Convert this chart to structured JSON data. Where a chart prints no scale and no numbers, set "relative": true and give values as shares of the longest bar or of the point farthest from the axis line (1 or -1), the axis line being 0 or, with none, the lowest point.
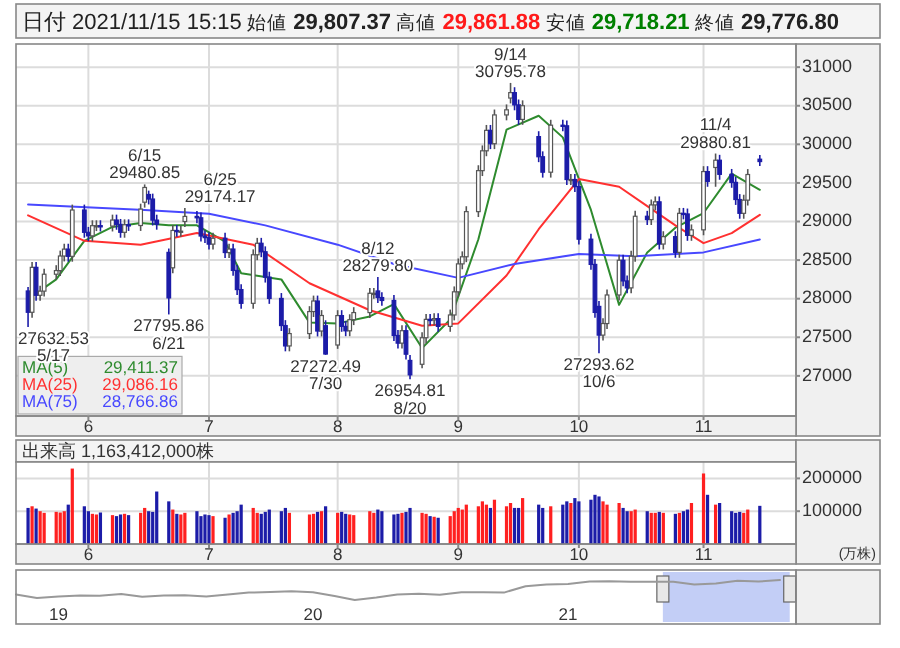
{
  "chart_data": [
    {
      "type": "candlestick",
      "title": "日付 2021/11/15 15:15 始値 29,807.37 高値 29,861.88 安値 29,718.21 終値 29,776.80",
      "x": [
        "2021-05-17",
        "2021-05-18",
        "2021-05-19",
        "2021-05-20",
        "2021-05-21",
        "2021-05-24",
        "2021-05-25",
        "2021-05-26",
        "2021-05-27",
        "2021-05-28",
        "2021-05-31",
        "2021-06-01",
        "2021-06-02",
        "2021-06-03",
        "2021-06-04",
        "2021-06-07",
        "2021-06-08",
        "2021-06-09",
        "2021-06-10",
        "2021-06-11",
        "2021-06-14",
        "2021-06-15",
        "2021-06-16",
        "2021-06-17",
        "2021-06-18",
        "2021-06-21",
        "2021-06-22",
        "2021-06-23",
        "2021-06-24",
        "2021-06-25",
        "2021-06-28",
        "2021-06-29",
        "2021-06-30",
        "2021-07-01",
        "2021-07-02",
        "2021-07-05",
        "2021-07-06",
        "2021-07-07",
        "2021-07-08",
        "2021-07-09",
        "2021-07-12",
        "2021-07-13",
        "2021-07-14",
        "2021-07-15",
        "2021-07-16",
        "2021-07-19",
        "2021-07-20",
        "2021-07-21",
        "2021-07-26",
        "2021-07-27",
        "2021-07-28",
        "2021-07-29",
        "2021-07-30",
        "2021-08-02",
        "2021-08-03",
        "2021-08-04",
        "2021-08-05",
        "2021-08-06",
        "2021-08-10",
        "2021-08-11",
        "2021-08-12",
        "2021-08-13",
        "2021-08-16",
        "2021-08-17",
        "2021-08-18",
        "2021-08-19",
        "2021-08-20",
        "2021-08-23",
        "2021-08-24",
        "2021-08-25",
        "2021-08-26",
        "2021-08-27",
        "2021-08-30",
        "2021-08-31",
        "2021-09-01",
        "2021-09-02",
        "2021-09-03",
        "2021-09-06",
        "2021-09-07",
        "2021-09-08",
        "2021-09-09",
        "2021-09-10",
        "2021-09-13",
        "2021-09-14",
        "2021-09-15",
        "2021-09-16",
        "2021-09-17",
        "2021-09-21",
        "2021-09-22",
        "2021-09-24",
        "2021-09-27",
        "2021-09-28",
        "2021-09-29",
        "2021-09-30",
        "2021-10-01",
        "2021-10-04",
        "2021-10-05",
        "2021-10-06",
        "2021-10-07",
        "2021-10-08",
        "2021-10-11",
        "2021-10-12",
        "2021-10-13",
        "2021-10-14",
        "2021-10-15",
        "2021-10-18",
        "2021-10-19",
        "2021-10-20",
        "2021-10-21",
        "2021-10-22",
        "2021-10-25",
        "2021-10-26",
        "2021-10-27",
        "2021-10-28",
        "2021-10-29",
        "2021-11-01",
        "2021-11-02",
        "2021-11-04",
        "2021-11-05",
        "2021-11-08",
        "2021-11-09",
        "2021-11-10",
        "2021-11-11",
        "2021-11-12",
        "2021-11-15"
      ],
      "ohlc": [
        [
          28100,
          28150,
          27632.53,
          27824
        ],
        [
          27824,
          28476,
          27754,
          28406
        ],
        [
          28406,
          28476,
          27974,
          28044
        ],
        [
          28044,
          28168,
          27974,
          28098
        ],
        [
          28098,
          28387,
          28028,
          28317
        ],
        [
          28317,
          28434,
          28247,
          28364
        ],
        [
          28364,
          28623,
          28294,
          28553
        ],
        [
          28553,
          28712,
          28483,
          28642
        ],
        [
          28642,
          28712,
          28479,
          28549
        ],
        [
          28549,
          29219,
          28479,
          29149
        ],
        [
          29149,
          29219,
          28790,
          28860
        ],
        [
          28860,
          28930,
          28744,
          28814
        ],
        [
          28814,
          29016,
          28744,
          28946
        ],
        [
          28946,
          29016,
          28876,
          28946
        ],
        [
          28946,
          29016,
          28871,
          28941
        ],
        [
          28941,
          29089,
          28871,
          29019
        ],
        [
          29019,
          29089,
          28893,
          28963
        ],
        [
          28963,
          29033,
          28790,
          28860
        ],
        [
          28860,
          29028,
          28790,
          28958
        ],
        [
          28958,
          29028,
          28878,
          28948
        ],
        [
          28948,
          29231,
          28878,
          29161
        ],
        [
          29250,
          29480.85,
          29180,
          29441
        ],
        [
          29350,
          29400,
          29221,
          29291
        ],
        [
          29291,
          29361,
          28948,
          29018
        ],
        [
          29018,
          29088,
          28894,
          28964
        ],
        [
          28600,
          28650,
          27795.86,
          28010
        ],
        [
          28400,
          28954,
          28330,
          28884
        ],
        [
          28884,
          28954,
          28804,
          28874
        ],
        [
          28874,
          28945,
          28804,
          28875
        ],
        [
          29000,
          29174.17,
          28930,
          29066
        ],
        [
          29066,
          29136,
          28978,
          29048
        ],
        [
          29048,
          29118,
          28742,
          28812
        ],
        [
          28812,
          28882,
          28721,
          28791
        ],
        [
          28791,
          28861,
          28637,
          28707
        ],
        [
          28707,
          28853,
          28637,
          28783
        ],
        [
          28783,
          28853,
          28528,
          28598
        ],
        [
          28598,
          28713,
          28528,
          28643
        ],
        [
          28643,
          28713,
          28296,
          28366
        ],
        [
          28366,
          28436,
          28048,
          28118
        ],
        [
          28118,
          28188,
          27870,
          27940
        ],
        [
          27940,
          28639,
          27870,
          28569
        ],
        [
          28569,
          28788,
          28499,
          28718
        ],
        [
          28718,
          28788,
          28538,
          28608
        ],
        [
          28608,
          28678,
          28209,
          28279
        ],
        [
          28279,
          28349,
          27933,
          28003
        ],
        [
          28003,
          28073,
          27582,
          27652
        ],
        [
          27652,
          27722,
          27318,
          27388
        ],
        [
          27388,
          27618,
          27318,
          27548
        ],
        [
          27548,
          27903,
          27478,
          27833
        ],
        [
          27833,
          28040,
          27763,
          27970
        ],
        [
          27970,
          28040,
          27511,
          27581
        ],
        [
          27581,
          27852,
          27511,
          27782
        ],
        [
          27650,
          27720,
          27272.49,
          27283
        ],
        [
          27400,
          27851,
          27350,
          27781
        ],
        [
          27781,
          27851,
          27571,
          27641
        ],
        [
          27641,
          27711,
          27514,
          27584
        ],
        [
          27584,
          27798,
          27514,
          27728
        ],
        [
          27728,
          27890,
          27658,
          27820
        ],
        [
          27820,
          28140,
          27750,
          28070
        ],
        [
          28070,
          28140,
          28000,
          28070
        ],
        [
          28100,
          28279.8,
          27945,
          28015
        ],
        [
          28015,
          28085,
          27907,
          27977
        ],
        [
          27977,
          28047,
          27453,
          27523
        ],
        [
          27523,
          27593,
          27354,
          27424
        ],
        [
          27424,
          27655,
          27354,
          27585
        ],
        [
          27585,
          27655,
          27211,
          27281
        ],
        [
          27200,
          27270,
          26954.81,
          27013
        ],
        [
          27150,
          27564,
          27100,
          27494
        ],
        [
          27494,
          27802,
          27424,
          27732
        ],
        [
          27732,
          27802,
          27654,
          27724
        ],
        [
          27724,
          27812,
          27654,
          27742
        ],
        [
          27742,
          27812,
          27571,
          27641
        ],
        [
          27641,
          27859,
          27571,
          27789
        ],
        [
          27789,
          28159,
          27719,
          28089
        ],
        [
          28089,
          28521,
          28019,
          28451
        ],
        [
          28451,
          28613,
          28381,
          28543
        ],
        [
          28543,
          29198,
          28473,
          29128
        ],
        [
          29128,
          29729,
          29058,
          29659
        ],
        [
          29659,
          29986,
          29589,
          29916
        ],
        [
          29916,
          30251,
          29846,
          30181
        ],
        [
          30181,
          30251,
          29938,
          30008
        ],
        [
          30008,
          30451,
          29938,
          30381
        ],
        [
          30381,
          30517,
          30311,
          30447
        ],
        [
          30600,
          30795.78,
          30530,
          30670
        ],
        [
          30670,
          30740,
          30441,
          30511
        ],
        [
          30511,
          30581,
          30253,
          30323
        ],
        [
          30323,
          30570,
          30253,
          30500
        ],
        [
          30100,
          30170,
          29769,
          29839
        ],
        [
          29839,
          29909,
          29569,
          29639
        ],
        [
          29639,
          30318,
          29569,
          30248
        ],
        [
          30248,
          30318,
          30170,
          30240
        ],
        [
          30240,
          30310,
          29474,
          29544
        ],
        [
          29544,
          29614,
          29474,
          29544
        ],
        [
          29544,
          29614,
          29382,
          29452
        ],
        [
          29452,
          29522,
          28701,
          28771
        ],
        [
          28771,
          28841,
          28374,
          28444
        ],
        [
          28444,
          28514,
          27752,
          27822
        ],
        [
          27900,
          27970,
          27293.62,
          27528
        ],
        [
          27528,
          27748,
          27458,
          27678
        ],
        [
          27678,
          28118,
          27608,
          28048
        ],
        [
          28048,
          28568,
          27978,
          28498
        ],
        [
          28498,
          28568,
          28160,
          28230
        ],
        [
          28230,
          28300,
          28070,
          28140
        ],
        [
          28140,
          28620,
          28070,
          28550
        ],
        [
          28550,
          29138,
          28480,
          29068
        ],
        [
          29068,
          29138,
          28955,
          29025
        ],
        [
          29025,
          29285,
          28955,
          29215
        ],
        [
          29215,
          29325,
          29145,
          29255
        ],
        [
          29255,
          29325,
          28638,
          28708
        ],
        [
          28708,
          28874,
          28638,
          28804
        ],
        [
          28804,
          28874,
          28530,
          28600
        ],
        [
          28600,
          29176,
          28530,
          29106
        ],
        [
          29106,
          29176,
          29028,
          29098
        ],
        [
          29098,
          29168,
          28750,
          28820
        ],
        [
          28820,
          28962,
          28750,
          28892
        ],
        [
          28892,
          29717,
          28822,
          29647
        ],
        [
          29647,
          29717,
          29450,
          29520
        ],
        [
          29700,
          29880.81,
          29450,
          29794
        ],
        [
          29794,
          29864,
          29541,
          29611
        ],
        [
          29611,
          29681,
          29437,
          29507
        ],
        [
          29507,
          29577,
          29215,
          29285
        ],
        [
          29285,
          29355,
          29036,
          29106
        ],
        [
          29106,
          29347,
          29036,
          29277
        ],
        [
          29277,
          29679,
          29207,
          29609
        ],
        [
          29807.37,
          29861.88,
          29718.21,
          29776.8
        ]
      ],
      "series": [
        {
          "type": "line",
          "name": "MA(5) 29,411.37",
          "color": "#2e8b2e",
          "x": [
            "2021-05-21",
            "2021-05-24",
            "2021-05-31",
            "2021-06-07",
            "2021-06-14",
            "2021-06-21",
            "2021-06-28",
            "2021-07-05",
            "2021-07-09",
            "2021-07-19",
            "2021-07-26",
            "2021-08-02",
            "2021-08-10",
            "2021-08-16",
            "2021-08-23",
            "2021-08-30",
            "2021-09-06",
            "2021-09-13",
            "2021-09-21",
            "2021-09-27",
            "2021-10-04",
            "2021-10-11",
            "2021-10-18",
            "2021-10-25",
            "2021-11-01",
            "2021-11-08",
            "2021-11-15"
          ],
          "values": [
            28140,
            28250,
            28750,
            28930,
            28980,
            28950,
            28950,
            28740,
            28330,
            28250,
            27690,
            27680,
            27770,
            27930,
            27360,
            27730,
            28770,
            30190,
            30370,
            30090,
            29150,
            27920,
            28600,
            28920,
            29110,
            29620,
            29411.37
          ]
        },
        {
          "type": "line",
          "name": "MA(25) 29,086.16",
          "color": "#ff3030",
          "x": [
            "2021-05-17",
            "2021-05-31",
            "2021-06-14",
            "2021-06-28",
            "2021-07-12",
            "2021-07-26",
            "2021-08-10",
            "2021-08-23",
            "2021-09-01",
            "2021-09-13",
            "2021-09-21",
            "2021-10-01",
            "2021-10-11",
            "2021-10-18",
            "2021-10-25",
            "2021-11-01",
            "2021-11-08",
            "2021-11-15"
          ],
          "values": [
            29080,
            28750,
            28700,
            28850,
            28700,
            28200,
            27850,
            27650,
            27680,
            28300,
            28900,
            29550,
            29450,
            29200,
            28950,
            28720,
            28850,
            29086.16
          ]
        },
        {
          "type": "line",
          "name": "MA(75) 28,766.86",
          "color": "#4848ff",
          "x": [
            "2021-05-17",
            "2021-06-15",
            "2021-07-01",
            "2021-07-15",
            "2021-08-02",
            "2021-08-16",
            "2021-09-01",
            "2021-09-15",
            "2021-10-01",
            "2021-10-15",
            "2021-11-01",
            "2021-11-15"
          ],
          "values": [
            29220,
            29150,
            29100,
            28950,
            28700,
            28450,
            28270,
            28450,
            28580,
            28550,
            28600,
            28766.86
          ]
        }
      ],
      "xlim": [
        "2021-05-14",
        "2021-11-24"
      ],
      "xticks": [
        {
          "value": "2021-06-01",
          "label": "6"
        },
        {
          "value": "2021-07-01",
          "label": "7"
        },
        {
          "value": "2021-08-02",
          "label": "8"
        },
        {
          "value": "2021-09-01",
          "label": "9"
        },
        {
          "value": "2021-10-01",
          "label": "10"
        },
        {
          "value": "2021-11-01",
          "label": "11"
        }
      ],
      "ylim": [
        26480,
        31300
      ],
      "yticks": [
        27000,
        27500,
        28000,
        28500,
        29000,
        29500,
        30000,
        30500,
        31000
      ],
      "grid": true,
      "annotations": [
        {
          "text": "27632.53\n5/17",
          "x": "2021-05-17",
          "y": 27632.53
        },
        {
          "text": "6/15\n29480.85",
          "x": "2021-06-15",
          "y": 29480.85
        },
        {
          "text": "6/25\n29174.17",
          "x": "2021-06-25",
          "y": 29174.17
        },
        {
          "text": "27795.86\n6/21",
          "x": "2021-06-21",
          "y": 27795.86
        },
        {
          "text": "27272.49\n7/30",
          "x": "2021-07-30",
          "y": 27272.49
        },
        {
          "text": "8/12\n28279.80",
          "x": "2021-08-12",
          "y": 28279.8
        },
        {
          "text": "26954.81\n8/20",
          "x": "2021-08-20",
          "y": 26954.81
        },
        {
          "text": "9/14\n30795.78",
          "x": "2021-09-14",
          "y": 30795.78
        },
        {
          "text": "27293.62\n10/6",
          "x": "2021-10-06",
          "y": 27293.62
        },
        {
          "text": "11/4\n29880.81",
          "x": "2021-11-04",
          "y": 29880.81
        }
      ]
    },
    {
      "type": "bar",
      "title": "出来高 1,163,412,000株",
      "ylabel": "(万株)",
      "x": [
        "2021-05-17",
        "2021-05-18",
        "2021-05-19",
        "2021-05-20",
        "2021-05-21",
        "2021-05-24",
        "2021-05-25",
        "2021-05-26",
        "2021-05-27",
        "2021-05-28",
        "2021-05-31",
        "2021-06-01",
        "2021-06-02",
        "2021-06-03",
        "2021-06-04",
        "2021-06-07",
        "2021-06-08",
        "2021-06-09",
        "2021-06-10",
        "2021-06-11",
        "2021-06-14",
        "2021-06-15",
        "2021-06-16",
        "2021-06-17",
        "2021-06-18",
        "2021-06-21",
        "2021-06-22",
        "2021-06-23",
        "2021-06-24",
        "2021-06-25",
        "2021-06-28",
        "2021-06-29",
        "2021-06-30",
        "2021-07-01",
        "2021-07-02",
        "2021-07-05",
        "2021-07-06",
        "2021-07-07",
        "2021-07-08",
        "2021-07-09",
        "2021-07-12",
        "2021-07-13",
        "2021-07-14",
        "2021-07-15",
        "2021-07-16",
        "2021-07-19",
        "2021-07-20",
        "2021-07-21",
        "2021-07-26",
        "2021-07-27",
        "2021-07-28",
        "2021-07-29",
        "2021-07-30",
        "2021-08-02",
        "2021-08-03",
        "2021-08-04",
        "2021-08-05",
        "2021-08-06",
        "2021-08-10",
        "2021-08-11",
        "2021-08-12",
        "2021-08-13",
        "2021-08-16",
        "2021-08-17",
        "2021-08-18",
        "2021-08-19",
        "2021-08-20",
        "2021-08-23",
        "2021-08-24",
        "2021-08-25",
        "2021-08-26",
        "2021-08-27",
        "2021-08-30",
        "2021-08-31",
        "2021-09-01",
        "2021-09-02",
        "2021-09-03",
        "2021-09-06",
        "2021-09-07",
        "2021-09-08",
        "2021-09-09",
        "2021-09-10",
        "2021-09-13",
        "2021-09-14",
        "2021-09-15",
        "2021-09-16",
        "2021-09-17",
        "2021-09-21",
        "2021-09-22",
        "2021-09-24",
        "2021-09-27",
        "2021-09-28",
        "2021-09-29",
        "2021-09-30",
        "2021-10-01",
        "2021-10-04",
        "2021-10-05",
        "2021-10-06",
        "2021-10-07",
        "2021-10-08",
        "2021-10-11",
        "2021-10-12",
        "2021-10-13",
        "2021-10-14",
        "2021-10-15",
        "2021-10-18",
        "2021-10-19",
        "2021-10-20",
        "2021-10-21",
        "2021-10-22",
        "2021-10-25",
        "2021-10-26",
        "2021-10-27",
        "2021-10-28",
        "2021-10-29",
        "2021-11-01",
        "2021-11-02",
        "2021-11-04",
        "2021-11-05",
        "2021-11-08",
        "2021-11-09",
        "2021-11-10",
        "2021-11-11",
        "2021-11-12",
        "2021-11-15"
      ],
      "values": [
        110000,
        115000,
        108000,
        100000,
        95000,
        98000,
        96000,
        100000,
        120000,
        230000,
        115000,
        100000,
        92000,
        90000,
        96000,
        88000,
        85000,
        90000,
        92000,
        88000,
        95000,
        110000,
        100000,
        98000,
        160000,
        130000,
        105000,
        92000,
        90000,
        95000,
        100000,
        85000,
        90000,
        88000,
        85000,
        80000,
        90000,
        95000,
        100000,
        120000,
        110000,
        95000,
        92000,
        98000,
        105000,
        100000,
        110000,
        95000,
        90000,
        92000,
        98000,
        100000,
        115000,
        95000,
        98000,
        92000,
        90000,
        88000,
        100000,
        95000,
        105000,
        100000,
        90000,
        92000,
        95000,
        98000,
        110000,
        95000,
        92000,
        85000,
        83000,
        80000,
        85000,
        100000,
        110000,
        105000,
        120000,
        115000,
        130000,
        120000,
        110000,
        135000,
        115000,
        125000,
        110000,
        110000,
        140000,
        120000,
        110000,
        115000,
        120000,
        130000,
        125000,
        140000,
        130000,
        135000,
        150000,
        145000,
        130000,
        120000,
        125000,
        110000,
        100000,
        100000,
        105000,
        100000,
        95000,
        95000,
        98000,
        95000,
        92000,
        95000,
        100000,
        105000,
        125000,
        215000,
        150000,
        120000,
        125000,
        100000,
        95000,
        98000,
        95000,
        105000,
        116340
      ],
      "colors": [
        "#1c1ca8",
        "#ff2020",
        "#1c1ca8",
        "#ff2020",
        "#ff2020",
        "#ff2020",
        "#ff2020",
        "#ff2020",
        "#1c1ca8",
        "#ff2020",
        "#1c1ca8",
        "#1c1ca8",
        "#ff2020",
        "#ff2020",
        "#1c1ca8",
        "#ff2020",
        "#1c1ca8",
        "#1c1ca8",
        "#ff2020",
        "#1c1ca8",
        "#ff2020",
        "#ff2020",
        "#1c1ca8",
        "#1c1ca8",
        "#1c1ca8",
        "#1c1ca8",
        "#ff2020",
        "#1c1ca8",
        "#ff2020",
        "#ff2020",
        "#1c1ca8",
        "#1c1ca8",
        "#1c1ca8",
        "#1c1ca8",
        "#ff2020",
        "#1c1ca8",
        "#ff2020",
        "#1c1ca8",
        "#1c1ca8",
        "#1c1ca8",
        "#ff2020",
        "#ff2020",
        "#1c1ca8",
        "#1c1ca8",
        "#1c1ca8",
        "#1c1ca8",
        "#1c1ca8",
        "#ff2020",
        "#ff2020",
        "#ff2020",
        "#1c1ca8",
        "#ff2020",
        "#1c1ca8",
        "#ff2020",
        "#1c1ca8",
        "#1c1ca8",
        "#ff2020",
        "#ff2020",
        "#ff2020",
        "#ff2020",
        "#1c1ca8",
        "#1c1ca8",
        "#1c1ca8",
        "#1c1ca8",
        "#ff2020",
        "#1c1ca8",
        "#1c1ca8",
        "#ff2020",
        "#ff2020",
        "#1c1ca8",
        "#ff2020",
        "#1c1ca8",
        "#ff2020",
        "#ff2020",
        "#ff2020",
        "#ff2020",
        "#ff2020",
        "#ff2020",
        "#ff2020",
        "#ff2020",
        "#1c1ca8",
        "#ff2020",
        "#ff2020",
        "#ff2020",
        "#1c1ca8",
        "#1c1ca8",
        "#ff2020",
        "#1c1ca8",
        "#1c1ca8",
        "#ff2020",
        "#1c1ca8",
        "#1c1ca8",
        "#ff2020",
        "#1c1ca8",
        "#1c1ca8",
        "#1c1ca8",
        "#1c1ca8",
        "#1c1ca8",
        "#ff2020",
        "#ff2020",
        "#ff2020",
        "#1c1ca8",
        "#1c1ca8",
        "#ff2020",
        "#ff2020",
        "#1c1ca8",
        "#ff2020",
        "#ff2020",
        "#1c1ca8",
        "#ff2020",
        "#1c1ca8",
        "#ff2020",
        "#1c1ca8",
        "#1c1ca8",
        "#ff2020",
        "#ff2020",
        "#1c1ca8",
        "#ff2020",
        "#1c1ca8",
        "#1c1ca8",
        "#1c1ca8",
        "#1c1ca8",
        "#ff2020",
        "#ff2020",
        "#1c1ca8"
      ],
      "xlim": [
        "2021-05-14",
        "2021-11-24"
      ],
      "xticks": [
        {
          "value": "2021-06-01",
          "label": "6"
        },
        {
          "value": "2021-07-01",
          "label": "7"
        },
        {
          "value": "2021-08-02",
          "label": "8"
        },
        {
          "value": "2021-09-01",
          "label": "9"
        },
        {
          "value": "2021-10-01",
          "label": "10"
        },
        {
          "value": "2021-11-01",
          "label": "11"
        }
      ],
      "ylim": [
        0,
        250000
      ],
      "yticks": [
        100000,
        200000
      ],
      "grid": true
    },
    {
      "type": "line",
      "relative": true,
      "tick_labels": "x",
      "color": "#999999",
      "x": [
        "2018-11",
        "2018-12",
        "2019-01",
        "2019-02",
        "2019-03",
        "2019-04",
        "2019-05",
        "2019-06",
        "2019-07",
        "2019-08",
        "2019-09",
        "2019-10",
        "2019-11",
        "2019-12",
        "2020-01",
        "2020-02",
        "2020-03",
        "2020-04",
        "2020-05",
        "2020-06",
        "2020-07",
        "2020-08",
        "2020-09",
        "2020-10",
        "2020-11",
        "2020-12",
        "2021-01",
        "2021-02",
        "2021-03",
        "2021-04",
        "2021-05",
        "2021-06",
        "2021-07",
        "2021-08",
        "2021-09",
        "2021-10",
        "2021-11"
      ],
      "values": [
        0.28,
        0.1,
        0.17,
        0.23,
        0.21,
        0.3,
        0.16,
        0.22,
        0.24,
        0.17,
        0.27,
        0.37,
        0.4,
        0.44,
        0.39,
        0.2,
        0,
        0.12,
        0.28,
        0.31,
        0.26,
        0.39,
        0.39,
        0.37,
        0.69,
        0.78,
        0.8,
        0.92,
        0.94,
        0.91,
        0.91,
        0.91,
        0.77,
        0.83,
        0.96,
        0.92,
        1
      ],
      "xlim": [
        "2018-11-01",
        "2021-11-24"
      ],
      "xticks": [
        {
          "value": "2019-01-01",
          "label": "19"
        },
        {
          "value": "2020-01-01",
          "label": "20"
        },
        {
          "value": "2021-01-01",
          "label": "21"
        }
      ],
      "bands": [
        {
          "axis": "x",
          "from": "2021-05-17",
          "to": "2021-11-15",
          "color": "#b4c2f4"
        }
      ]
    }
  ]
}
